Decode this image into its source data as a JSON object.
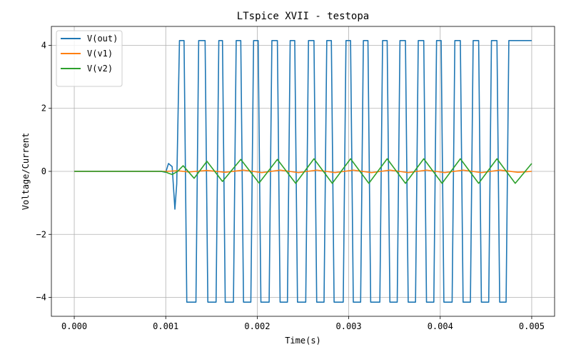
{
  "chart_data": {
    "type": "line",
    "title": "LTspice XVII - testopa",
    "xlabel": "Time(s)",
    "ylabel": "Voltage/Current",
    "xlim": [
      -0.00025,
      0.00525
    ],
    "ylim": [
      -4.6,
      4.6
    ],
    "x_ticks": [
      "0.000",
      "0.001",
      "0.002",
      "0.003",
      "0.004",
      "0.005"
    ],
    "y_ticks": [
      "4",
      "2",
      "0",
      "−2",
      "−4"
    ],
    "grid": true,
    "legend_position": "upper-left",
    "series": [
      {
        "name": "V(out)",
        "color": "#1f77b4",
        "x": [
          0,
          0.00095,
          0.001,
          0.00103,
          0.00107,
          0.0011,
          0.00112,
          0.00115,
          0.00116,
          0.00119,
          0.0012,
          0.00123,
          0.00125,
          0.00133,
          0.00136,
          0.00143,
          0.00146,
          0.00155,
          0.00158,
          0.00162,
          0.00165,
          0.00174,
          0.00177,
          0.00182,
          0.00185,
          0.00193,
          0.00196,
          0.00201,
          0.00204,
          0.00213,
          0.00216,
          0.00222,
          0.00225,
          0.00233,
          0.00236,
          0.00241,
          0.00244,
          0.00253,
          0.00256,
          0.00262,
          0.00265,
          0.00273,
          0.00276,
          0.00281,
          0.00284,
          0.00294,
          0.00297,
          0.00302,
          0.00305,
          0.00313,
          0.00316,
          0.00321,
          0.00324,
          0.00334,
          0.00337,
          0.00342,
          0.00345,
          0.00353,
          0.00356,
          0.00362,
          0.00365,
          0.00373,
          0.00376,
          0.00382,
          0.00385,
          0.00393,
          0.00396,
          0.00401,
          0.00404,
          0.00413,
          0.00416,
          0.00422,
          0.00425,
          0.00433,
          0.00436,
          0.00442,
          0.00445,
          0.00453,
          0.00456,
          0.00462,
          0.00465,
          0.00472,
          0.00475,
          0.0048,
          0.00483,
          0.005
        ],
        "values": [
          0,
          0,
          -0.03,
          0.25,
          0.15,
          -1.2,
          -0.4,
          4.15,
          4.15,
          4.15,
          4.15,
          -4.15,
          -4.15,
          -4.15,
          4.15,
          4.15,
          -4.15,
          -4.15,
          4.15,
          4.15,
          -4.15,
          -4.15,
          4.15,
          4.15,
          -4.15,
          -4.15,
          4.15,
          4.15,
          -4.15,
          -4.15,
          4.15,
          4.15,
          -4.15,
          -4.15,
          4.15,
          4.15,
          -4.15,
          -4.15,
          4.15,
          4.15,
          -4.15,
          -4.15,
          4.15,
          4.15,
          -4.15,
          -4.15,
          4.15,
          4.15,
          -4.15,
          -4.15,
          4.15,
          4.15,
          -4.15,
          -4.15,
          4.15,
          4.15,
          -4.15,
          -4.15,
          4.15,
          4.15,
          -4.15,
          -4.15,
          4.15,
          4.15,
          -4.15,
          -4.15,
          4.15,
          4.15,
          -4.15,
          -4.15,
          4.15,
          4.15,
          -4.15,
          -4.15,
          4.15,
          4.15,
          -4.15,
          -4.15,
          4.15,
          4.15,
          -4.15,
          -4.15,
          4.15,
          4.15,
          4.15,
          4.15
        ]
      },
      {
        "name": "V(v1)",
        "color": "#ff7f0e",
        "x": [
          0,
          0.001,
          0.00113,
          0.00125,
          0.00145,
          0.00165,
          0.00185,
          0.00205,
          0.00225,
          0.00245,
          0.00265,
          0.00285,
          0.00305,
          0.00325,
          0.00345,
          0.00365,
          0.00385,
          0.00405,
          0.00425,
          0.00445,
          0.00465,
          0.00485,
          0.005
        ],
        "values": [
          0,
          0,
          0.02,
          -0.02,
          0.03,
          -0.03,
          0.04,
          -0.04,
          0.04,
          -0.04,
          0.04,
          -0.04,
          0.04,
          -0.04,
          0.04,
          -0.04,
          0.04,
          -0.04,
          0.04,
          -0.04,
          0.04,
          -0.03,
          0.0
        ]
      },
      {
        "name": "V(v2)",
        "color": "#2ca02c",
        "x": [
          0,
          0.00095,
          0.001,
          0.00103,
          0.00107,
          0.0011,
          0.00113,
          0.00119,
          0.00131,
          0.00145,
          0.00162,
          0.00182,
          0.00202,
          0.00222,
          0.00242,
          0.00262,
          0.00282,
          0.00302,
          0.00322,
          0.00342,
          0.00362,
          0.00382,
          0.00402,
          0.00422,
          0.00442,
          0.00462,
          0.00482,
          0.005
        ],
        "values": [
          0,
          0,
          -0.02,
          -0.06,
          -0.1,
          -0.05,
          0.0,
          0.18,
          -0.22,
          0.32,
          -0.32,
          0.38,
          -0.37,
          0.38,
          -0.38,
          0.4,
          -0.38,
          0.4,
          -0.38,
          0.4,
          -0.38,
          0.4,
          -0.38,
          0.4,
          -0.38,
          0.4,
          -0.38,
          0.25
        ]
      }
    ]
  }
}
